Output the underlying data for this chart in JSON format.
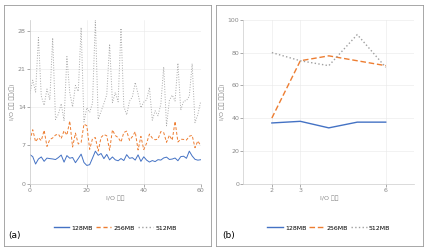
{
  "chart_a": {
    "xlabel": "I/O 회수",
    "ylabel": "I/O 평균 시간(초)",
    "xlim": [
      0,
      60
    ],
    "ylim": [
      0,
      30
    ],
    "xticks": [
      0,
      20,
      40,
      60
    ],
    "yticks": [
      0,
      7,
      14,
      21,
      28
    ],
    "line_128_color": "#4472C4",
    "line_256_color": "#ED7D31",
    "line_512_color": "#A0A0A0",
    "label": "(a)"
  },
  "chart_b": {
    "xlabel": "I/O 회수",
    "ylabel": "I/O 평균 시간(초)",
    "xlim": [
      1,
      7
    ],
    "ylim": [
      0,
      100
    ],
    "xticks": [
      2,
      3,
      6
    ],
    "yticks": [
      0,
      20,
      40,
      60,
      80,
      100
    ],
    "line_128_color": "#4472C4",
    "line_256_color": "#ED7D31",
    "line_512_color": "#A0A0A0",
    "label": "(b)"
  },
  "legend_labels": [
    "128MB",
    "256MB",
    "512MB"
  ],
  "background_color": "#ffffff",
  "fontsize": 4.5
}
